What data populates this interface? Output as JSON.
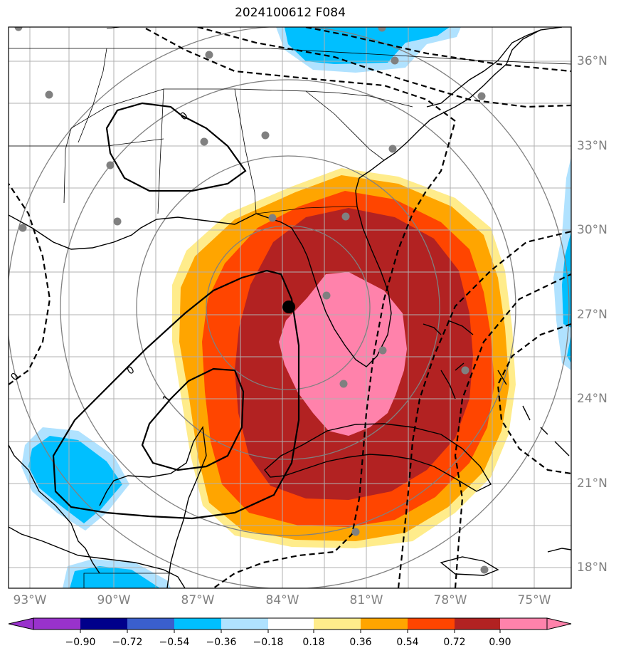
{
  "title": "2024100612 F084",
  "lat_labels": [
    "36°N",
    "33°N",
    "30°N",
    "27°N",
    "24°N",
    "21°N",
    "18°N"
  ],
  "lon_labels": [
    "93°W",
    "90°W",
    "87°W",
    "84°W",
    "81°W",
    "78°W",
    "75°W"
  ],
  "colorbar": {
    "ticks": [
      "−0.90",
      "−0.72",
      "−0.54",
      "−0.36",
      "−0.18",
      "0.18",
      "0.36",
      "0.54",
      "0.72",
      "0.90"
    ],
    "colors": [
      "#9932cc",
      "#00008b",
      "#3a5fcd",
      "#00bfff",
      "#b0e2ff",
      "#ffffff",
      "#ffec8b",
      "#ffa500",
      "#ff4500",
      "#b22222",
      "#ff82ab"
    ]
  },
  "contour_labels": [
    "0",
    "0",
    "1",
    "0"
  ],
  "colors": {
    "positive_core": "#ff82ab",
    "positive_high": "#b22222",
    "positive_mid": "#ff4500",
    "positive_low": "#ffa500",
    "positive_min": "#ffec8b",
    "negative": "#00bfff",
    "negative_light": "#b0e2ff",
    "grid": "#b0b0b0",
    "range_rings": "#808080",
    "stations": "#808080"
  }
}
